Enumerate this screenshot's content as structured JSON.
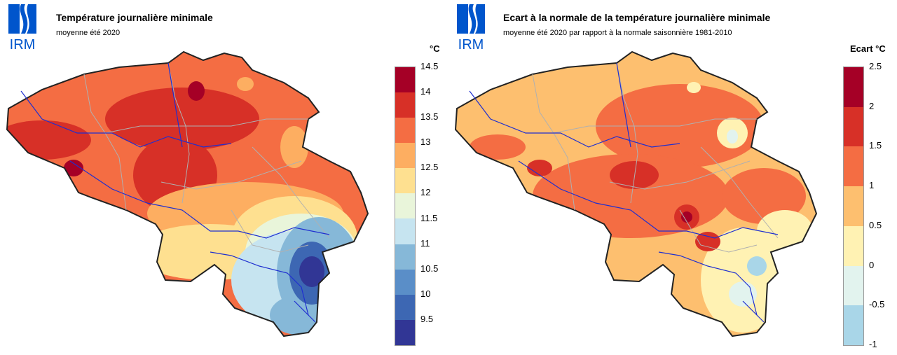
{
  "logo": {
    "text": "IRM",
    "color": "#0055cc"
  },
  "left": {
    "title": "Température journalière minimale",
    "subtitle": "moyenne été 2020",
    "unit": "°C",
    "legend": {
      "ticks": [
        "14.5",
        "14",
        "13.5",
        "13",
        "12.5",
        "12",
        "11.5",
        "11",
        "10.5",
        "10",
        "9.5"
      ],
      "colors": [
        "#a50026",
        "#d73027",
        "#f46d43",
        "#fdae61",
        "#fee090",
        "#e9f5da",
        "#c6e4f0",
        "#86b8d8",
        "#5a8ec8",
        "#3d67b3",
        "#313695"
      ]
    }
  },
  "right": {
    "title": "Ecart à la normale de la température journalière minimale",
    "subtitle": "moyenne été 2020 par rapport à la normale saisonnière 1981-2010",
    "unit": "Ecart °C",
    "legend": {
      "ticks": [
        "2.5",
        "2",
        "1.5",
        "1",
        "0.5",
        "0",
        "-0.5",
        "-1"
      ],
      "colors": [
        "#a50026",
        "#d73027",
        "#f46d43",
        "#fdbf6f",
        "#fff2b3",
        "#e2f3ee",
        "#a9d6e8"
      ]
    }
  }
}
